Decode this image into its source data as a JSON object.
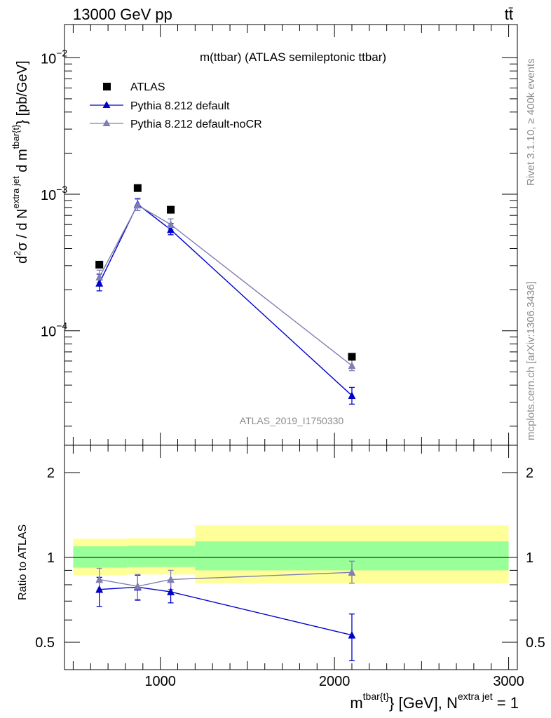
{
  "header": {
    "energy_label": "13000 GeV pp",
    "process_label": "tt̄"
  },
  "side_labels": {
    "rivet": "Rivet 3.1.10, ≥ 400k events",
    "mcplots": "mcplots.cern.ch [arXiv:1306.3436]"
  },
  "chart_data": [
    {
      "type": "line",
      "title": "m(ttbar) (ATLAS semileptonic ttbar)",
      "watermark": "ATLAS_2019_I1750330",
      "ylabel": "d²σ / d N^{extra jet} d m^{tbar{t}} [pb/GeV]",
      "ylabel_parts": {
        "d2sigma": "d",
        "sup2": "2",
        "sigma_rest": "σ / d N",
        "sup_extra": "extra jet",
        "mid": " d m",
        "sup_tbar": "tbar{t}",
        "unit": "} [pb/GeV]"
      },
      "yscale": "log",
      "ylim": [
        1.45e-05,
        0.0175
      ],
      "xlim": [
        450,
        3050
      ],
      "yticks": [
        {
          "value": 0.01,
          "base": "10",
          "exp": "−2"
        },
        {
          "value": 0.001,
          "base": "10",
          "exp": "−3"
        },
        {
          "value": 0.0001,
          "base": "10",
          "exp": "−4"
        }
      ],
      "legend_position": "top-left",
      "series": [
        {
          "name": "ATLAS",
          "color": "#000000",
          "marker": "square",
          "x": [
            650,
            870,
            1060,
            2100
          ],
          "y": [
            0.000305,
            0.00111,
            0.00077,
            6.45e-05
          ]
        },
        {
          "name": "Pythia 8.212 default",
          "color": "#0000cc",
          "marker": "triangle",
          "x": [
            650,
            870,
            1060,
            2100
          ],
          "y": [
            0.000223,
            0.000845,
            0.00055,
            3.35e-05
          ],
          "err_lo": [
            0.000196,
            0.00076,
            0.000505,
            2.9e-05
          ],
          "err_hi": [
            0.00026,
            0.00093,
            0.00061,
            3.85e-05
          ]
        },
        {
          "name": "Pythia 8.212 default-noCR",
          "color": "#7f7fb4",
          "marker": "triangle",
          "x": [
            650,
            870,
            1060,
            2100
          ],
          "y": [
            0.000247,
            0.000833,
            0.0006,
            5.55e-05
          ],
          "err_lo": [
            0.000225,
            0.00076,
            0.00055,
            5.1e-05
          ],
          "err_hi": [
            0.000278,
            0.00092,
            0.00066,
            6.1e-05
          ]
        }
      ]
    },
    {
      "type": "line",
      "ylabel": "Ratio to ATLAS",
      "xlabel": "m^{tbar{t}} [GeV], N^{extra jet} = 1",
      "xlabel_parts": {
        "m": "m",
        "sup_tbar": "tbar{t}",
        "mid": "} [GeV], N",
        "sup_extra": "extra jet",
        "end": " = 1"
      },
      "yscale": "log",
      "ylim": [
        0.4,
        2.5
      ],
      "xlim": [
        450,
        3050
      ],
      "xticks": [
        1000,
        2000,
        3000
      ],
      "xtick_labels": [
        "1000",
        "2000",
        "3000"
      ],
      "yticks": [
        0.5,
        1,
        2
      ],
      "ytick_labels": [
        "0.5",
        "1",
        "2"
      ],
      "bands": [
        {
          "x0": 500,
          "x1": 810,
          "yellow": [
            0.865,
            1.165
          ],
          "green": [
            0.92,
            1.095
          ]
        },
        {
          "x0": 810,
          "x1": 1200,
          "yellow": [
            0.87,
            1.17
          ],
          "green": [
            0.925,
            1.1
          ]
        },
        {
          "x0": 1200,
          "x1": 3000,
          "yellow": [
            0.81,
            1.3
          ],
          "green": [
            0.9,
            1.14
          ]
        }
      ],
      "series": [
        {
          "name": "Pythia 8.212 default",
          "color": "#0000cc",
          "x": [
            650,
            870,
            1060,
            2100
          ],
          "y": [
            0.77,
            0.785,
            0.755,
            0.53
          ],
          "err_lo": [
            0.67,
            0.705,
            0.69,
            0.43
          ],
          "err_hi": [
            0.85,
            0.865,
            0.825,
            0.63
          ]
        },
        {
          "name": "Pythia 8.212 default-noCR",
          "color": "#7f7fb4",
          "x": [
            650,
            870,
            1060,
            2100
          ],
          "y": [
            0.835,
            0.79,
            0.835,
            0.885
          ],
          "err_lo": [
            0.765,
            0.71,
            0.77,
            0.81
          ],
          "err_hi": [
            0.915,
            0.87,
            0.9,
            0.97
          ]
        }
      ]
    }
  ]
}
